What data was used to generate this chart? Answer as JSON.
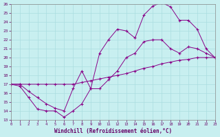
{
  "xlabel": "Windchill (Refroidissement éolien,°C)",
  "xlim": [
    0,
    23
  ],
  "ylim": [
    13,
    26
  ],
  "xticks": [
    0,
    1,
    2,
    3,
    4,
    5,
    6,
    7,
    8,
    9,
    10,
    11,
    12,
    13,
    14,
    15,
    16,
    17,
    18,
    19,
    20,
    21,
    22,
    23
  ],
  "yticks": [
    13,
    14,
    15,
    16,
    17,
    18,
    19,
    20,
    21,
    22,
    23,
    24,
    25,
    26
  ],
  "bg_color": "#c8eff0",
  "grid_color": "#aadde0",
  "line_color": "#880088",
  "line1_x": [
    0,
    1,
    2,
    3,
    4,
    5,
    6,
    7,
    8,
    9,
    10,
    11,
    12,
    13,
    14,
    15,
    16,
    17,
    18,
    19,
    20,
    21,
    22,
    23
  ],
  "line1_y": [
    17.0,
    17.0,
    17.0,
    17.0,
    17.0,
    17.0,
    17.0,
    17.0,
    17.2,
    17.4,
    17.6,
    17.8,
    18.0,
    18.2,
    18.5,
    18.8,
    19.0,
    19.3,
    19.5,
    19.7,
    19.8,
    20.0,
    20.0,
    20.0
  ],
  "line2_x": [
    0,
    1,
    2,
    3,
    4,
    5,
    6,
    7,
    8,
    9,
    10,
    11,
    12,
    13,
    14,
    15,
    16,
    17,
    18,
    19,
    20,
    21,
    22,
    23
  ],
  "line2_y": [
    17.0,
    16.8,
    15.5,
    14.2,
    14.0,
    14.0,
    13.3,
    14.0,
    14.8,
    16.5,
    16.5,
    17.5,
    18.5,
    20.0,
    20.5,
    21.8,
    22.0,
    22.0,
    21.0,
    20.5,
    21.2,
    21.0,
    20.5,
    20.0
  ],
  "line3_x": [
    0,
    1,
    2,
    3,
    4,
    5,
    6,
    7,
    8,
    9,
    10,
    11,
    12,
    13,
    14,
    15,
    16,
    17,
    18,
    19,
    20,
    21,
    22,
    23
  ],
  "line3_y": [
    17.0,
    17.0,
    16.2,
    15.5,
    14.8,
    14.3,
    14.0,
    16.5,
    18.5,
    16.5,
    20.5,
    22.0,
    23.2,
    23.0,
    22.2,
    24.8,
    25.8,
    26.2,
    25.7,
    24.2,
    24.2,
    23.2,
    21.0,
    20.0
  ]
}
